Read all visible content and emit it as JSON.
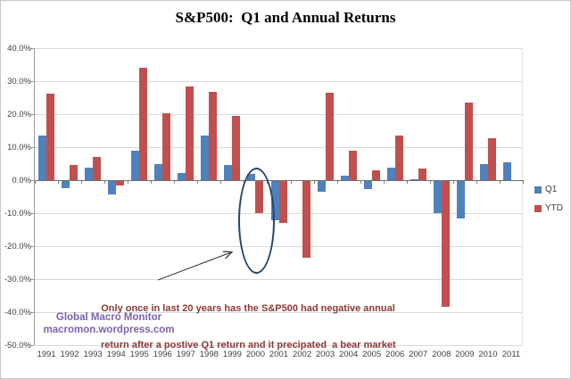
{
  "chart_title": "S&P500:  Q1 and Annual Returns",
  "chart_data": {
    "type": "bar",
    "title": "S&P500:  Q1 and Annual Returns",
    "categories": [
      "1991",
      "1992",
      "1993",
      "1994",
      "1995",
      "1996",
      "1997",
      "1998",
      "1999",
      "2000",
      "2001",
      "2002",
      "2003",
      "2004",
      "2005",
      "2006",
      "2007",
      "2008",
      "2009",
      "2010",
      "2011"
    ],
    "series": [
      {
        "name": "Q1",
        "color": "#4f81bd",
        "values": [
          13.6,
          -2.5,
          3.7,
          -4.4,
          9.0,
          4.8,
          2.2,
          13.5,
          4.6,
          2.0,
          -12.1,
          -0.1,
          -3.6,
          1.3,
          -2.6,
          3.7,
          0.2,
          -9.9,
          -11.7,
          4.9,
          5.4
        ]
      },
      {
        "name": "YTD",
        "color": "#c0504d",
        "values": [
          26.3,
          4.5,
          7.1,
          -1.5,
          34.1,
          20.3,
          28.4,
          26.7,
          19.5,
          -10.1,
          -13.0,
          -23.4,
          26.4,
          9.0,
          3.0,
          13.6,
          3.5,
          -38.5,
          23.5,
          12.8,
          null
        ]
      }
    ],
    "ylim": [
      -50,
      40
    ],
    "ytick_step": 10,
    "ytick_labels": [
      "40.0%",
      "30.0%",
      "20.0%",
      "10.0%",
      "0.0%",
      "-10.0%",
      "-20.0%",
      "-30.0%",
      "-40.0%",
      "-50.0%"
    ],
    "xlabel": "",
    "ylabel": "",
    "grid": true,
    "legend_position": "right"
  },
  "legend": {
    "q1_label": "Q1",
    "ytd_label": "YTD"
  },
  "annotation": {
    "line1": "Only once in last 20 years has the S&P500 had negative annual",
    "line2": "return after a postive Q1 return and it precipated  a bear market"
  },
  "watermark": {
    "line1": "Global Macro Monitor",
    "line2": "macromon.wordpress.com"
  },
  "colors": {
    "q1_bar": "#4f81bd",
    "ytd_bar": "#c0504d",
    "ellipse": "#26456e",
    "arrow": "#404040",
    "annotation_text": "#8e3836",
    "watermark_text": "#7e62ac",
    "gridline": "#d9d9d9"
  }
}
